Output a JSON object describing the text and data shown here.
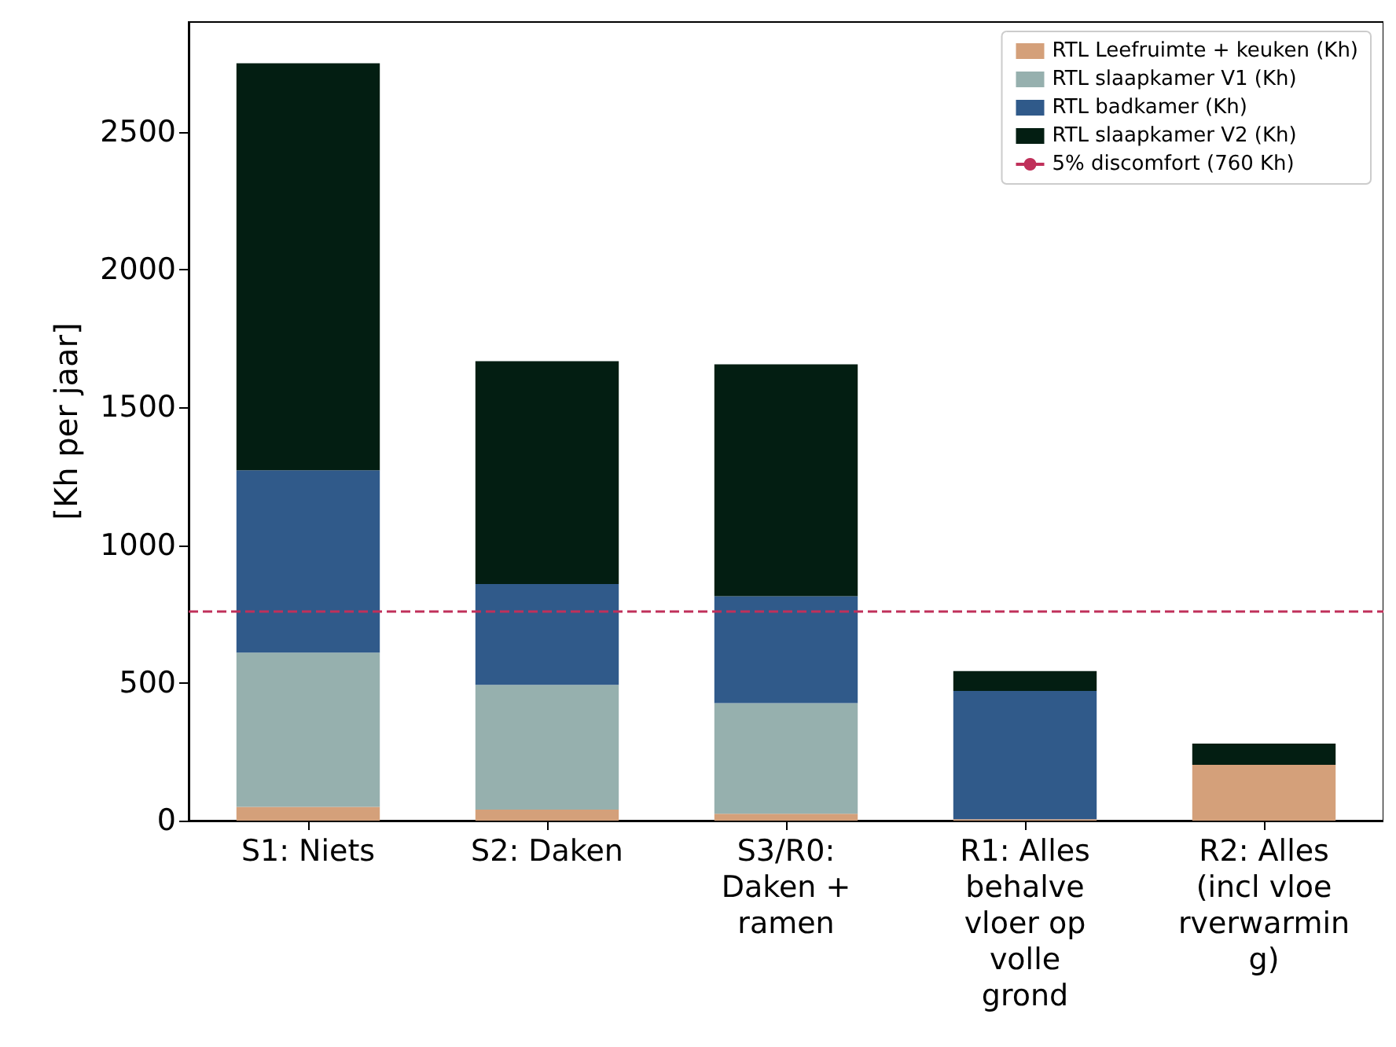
{
  "chart_data": {
    "type": "bar",
    "stacked": true,
    "ylabel": "[Kh per jaar]",
    "categories": [
      "S1: Niets",
      "S2: Daken",
      "S3/R0:\nDaken +\nramen",
      "R1: Alles\nbehalve\nvloer op\nvolle\ngrond",
      "R2: Alles\n(incl vloe\nrverwarmin\ng)"
    ],
    "series": [
      {
        "name": "RTL Leefruimte + keuken (Kh)",
        "color": "#d4a07a",
        "values": [
          50,
          40,
          25,
          5,
          203
        ]
      },
      {
        "name": "RTL slaapkamer V1 (Kh)",
        "color": "#96b0ae",
        "values": [
          560,
          453,
          402,
          0,
          0
        ]
      },
      {
        "name": "RTL badkamer (Kh)",
        "color": "#305a8a",
        "values": [
          662,
          366,
          388,
          466,
          0
        ]
      },
      {
        "name": "RTL slaapkamer V2 (Kh)",
        "color": "#031e12",
        "values": [
          1478,
          809,
          842,
          72,
          77
        ]
      }
    ],
    "ref_lines": [
      {
        "axis": "y",
        "value": 760,
        "label": "5% discomfort (760 Kh)",
        "color": "#c0305a",
        "line_style": "dashed"
      }
    ],
    "ylim": [
      0,
      2900
    ],
    "yticks": [
      0,
      500,
      1000,
      1500,
      2000,
      2500
    ],
    "grid": false,
    "legend": "top right"
  }
}
